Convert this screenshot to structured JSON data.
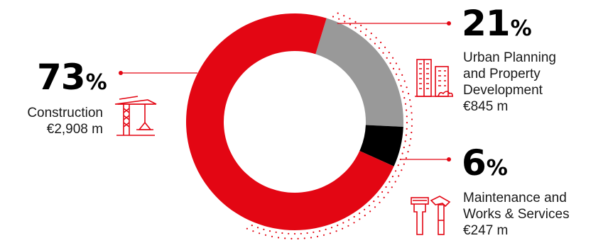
{
  "chart_data": {
    "type": "pie",
    "variant": "donut",
    "slices": [
      {
        "label_lines": [
          "Urban Planning",
          "and Property",
          "Development"
        ],
        "amount": "€845 m",
        "value": 21,
        "pct_number": "21",
        "pct_symbol": "%",
        "color": "#999999",
        "icon": "buildings-icon"
      },
      {
        "label_lines": [
          "Maintenance and",
          "Works & Services"
        ],
        "amount": "€247 m",
        "value": 6,
        "pct_number": "6",
        "pct_symbol": "%",
        "color": "#000000",
        "icon": "tools-icon"
      },
      {
        "label_lines": [
          "Construction"
        ],
        "amount": "€2,908 m",
        "value": 73,
        "pct_number": "73",
        "pct_symbol": "%",
        "color": "#e30613",
        "icon": "crane-icon"
      }
    ]
  },
  "colors": {
    "accent": "#e30613",
    "text": "#1a1a1a"
  }
}
